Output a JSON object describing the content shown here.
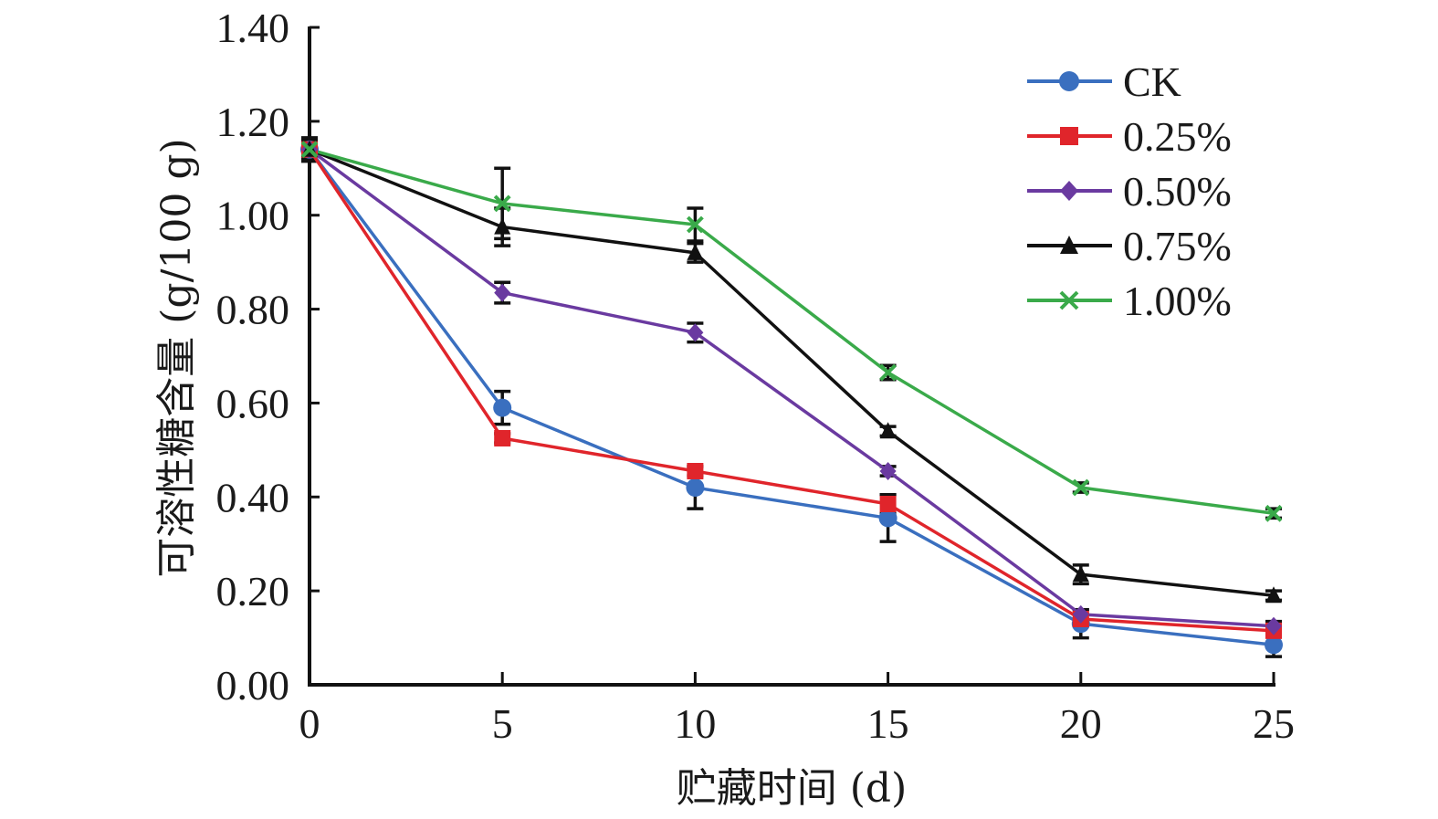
{
  "chart_data": {
    "type": "line",
    "title": "",
    "xlabel": "贮藏时间 (d)",
    "ylabel": "可溶性糖含量 (g/100 g)",
    "x": [
      0,
      5,
      10,
      15,
      20,
      25
    ],
    "xlim": [
      0,
      25
    ],
    "ylim": [
      0,
      1.4
    ],
    "xticks": [
      "0",
      "5",
      "10",
      "15",
      "20",
      "25"
    ],
    "yticks": [
      "0.00",
      "0.20",
      "0.40",
      "0.60",
      "0.80",
      "1.00",
      "1.20",
      "1.40"
    ],
    "ytick_values": [
      0,
      0.2,
      0.4,
      0.6,
      0.8,
      1.0,
      1.2,
      1.4
    ],
    "grid": false,
    "legend_position": "top-right",
    "series": [
      {
        "name": "CK",
        "color": "#3a6fbf",
        "marker": "circle",
        "values": [
          1.14,
          0.59,
          0.42,
          0.355,
          0.13,
          0.085
        ],
        "errors": [
          0.02,
          0.035,
          0.045,
          0.05,
          0.03,
          0.025
        ]
      },
      {
        "name": "0.25%",
        "color": "#e0252b",
        "marker": "square",
        "values": [
          1.14,
          0.525,
          0.455,
          0.385,
          0.14,
          0.115
        ],
        "errors": [
          0.01,
          0.01,
          0.01,
          0.02,
          0.01,
          0.01
        ]
      },
      {
        "name": "0.50%",
        "color": "#6a3aa0",
        "marker": "diamond",
        "values": [
          1.14,
          0.835,
          0.75,
          0.455,
          0.15,
          0.125
        ],
        "errors": [
          0.01,
          0.022,
          0.02,
          0.01,
          0.01,
          0.01
        ]
      },
      {
        "name": "0.75%",
        "color": "#111111",
        "marker": "triangle",
        "values": [
          1.14,
          0.975,
          0.92,
          0.54,
          0.235,
          0.19
        ],
        "errors": [
          0.025,
          0.04,
          0.02,
          0.01,
          0.02,
          0.01
        ]
      },
      {
        "name": "1.00%",
        "color": "#3aaa4a",
        "marker": "x",
        "values": [
          1.14,
          1.025,
          0.98,
          0.665,
          0.42,
          0.365
        ],
        "errors": [
          0.01,
          0.075,
          0.035,
          0.015,
          0.01,
          0.01
        ]
      }
    ]
  }
}
